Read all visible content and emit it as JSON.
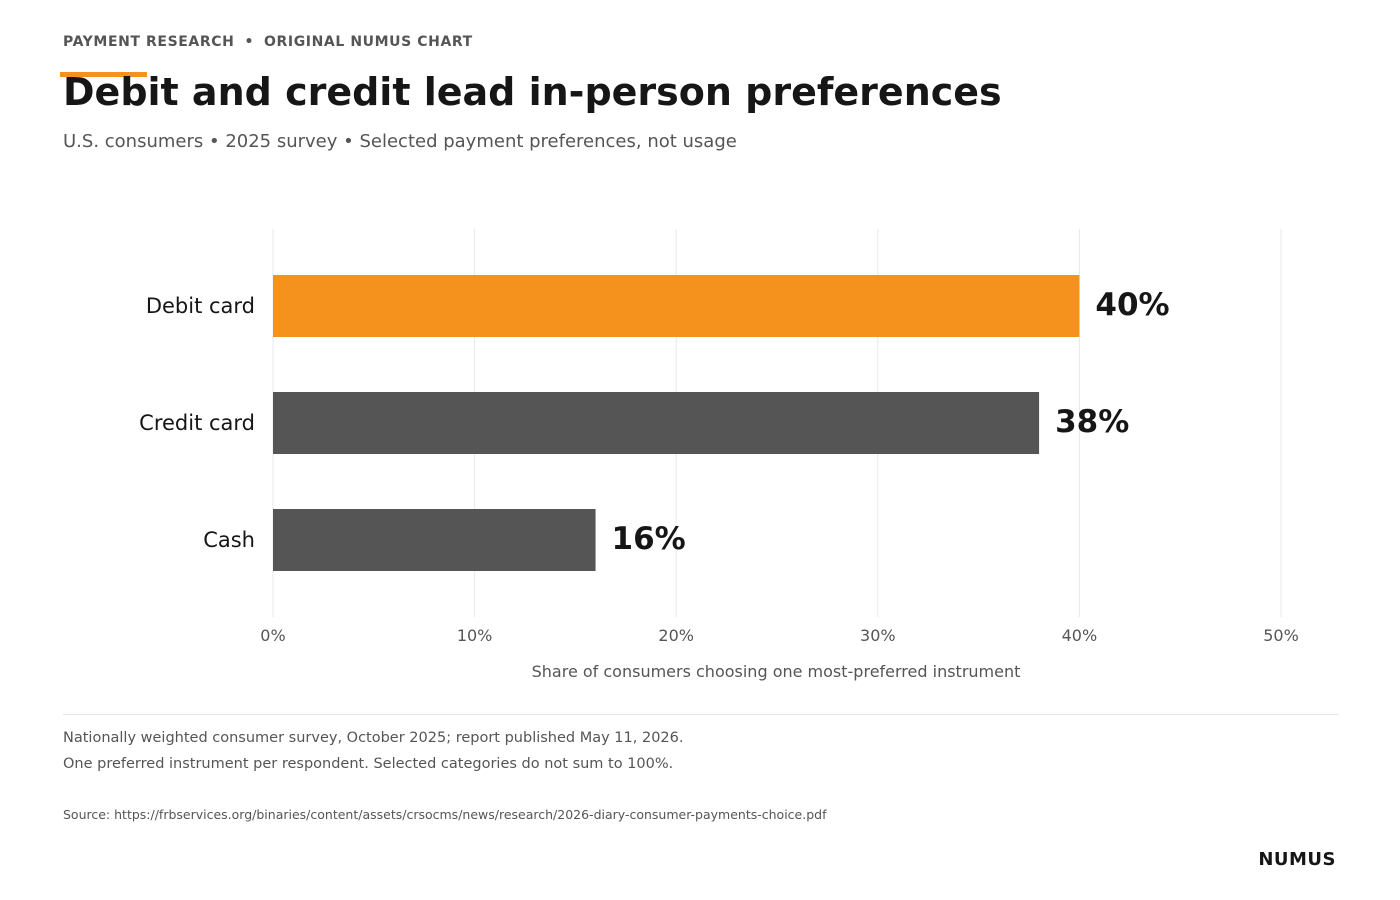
{
  "header": {
    "kicker_left": "PAYMENT RESEARCH",
    "kicker_sep": "•",
    "kicker_right": "ORIGINAL NUMUS CHART",
    "title": "Debit and credit lead in-person preferences",
    "subtitle": "U.S. consumers • 2025 survey • Selected payment preferences, not usage"
  },
  "colors": {
    "accent": "#F5921E",
    "bar_default": "#555555",
    "grid": "#e8e8e8",
    "text_dark": "#161616",
    "text_muted": "#555555"
  },
  "chart_data": {
    "type": "bar",
    "orientation": "horizontal",
    "categories": [
      "Debit card",
      "Credit card",
      "Cash"
    ],
    "values": [
      40,
      38,
      16
    ],
    "value_labels": [
      "40%",
      "38%",
      "16%"
    ],
    "highlight": "Debit card",
    "xlim": [
      0,
      50
    ],
    "xticks": [
      "0%",
      "10%",
      "20%",
      "30%",
      "40%",
      "50%"
    ],
    "xlabel": "Share of consumers choosing one most-preferred instrument",
    "ylabel": "",
    "grid": true
  },
  "footer": {
    "note_line1": "Nationally weighted consumer survey, October 2025; report published May 11, 2026.",
    "note_line2": "One preferred instrument per respondent. Selected categories do not sum to 100%.",
    "source": "Source: https://frbservices.org/binaries/content/assets/crsocms/news/research/2026-diary-consumer-payments-choice.pdf",
    "brand": "NUMUS"
  }
}
